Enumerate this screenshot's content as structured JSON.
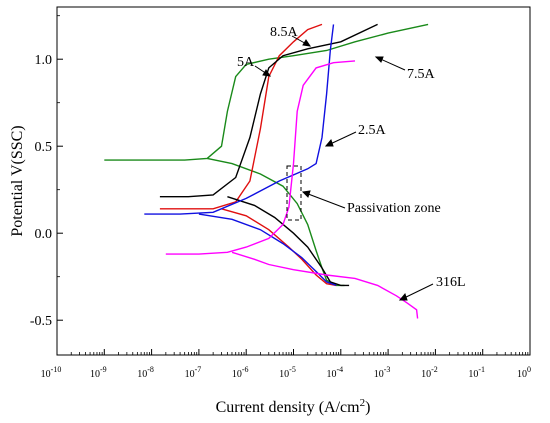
{
  "chart_data": {
    "type": "line",
    "xlabel": "Current density (A/cm",
    "xlabel_sup": "2",
    "xlabel_tail": ")",
    "ylabel": "Potential V(SSC)",
    "x_scale": "log",
    "xlim": [
      1e-10,
      1
    ],
    "ylim": [
      -0.7,
      1.3
    ],
    "x_ticks": [
      {
        "base": "10",
        "exp": "-10"
      },
      {
        "base": "10",
        "exp": "-9"
      },
      {
        "base": "10",
        "exp": "-8"
      },
      {
        "base": "10",
        "exp": "-7"
      },
      {
        "base": "10",
        "exp": "-6"
      },
      {
        "base": "10",
        "exp": "-5"
      },
      {
        "base": "10",
        "exp": "-4"
      },
      {
        "base": "10",
        "exp": "-3"
      },
      {
        "base": "10",
        "exp": "-2"
      },
      {
        "base": "10",
        "exp": "-1"
      },
      {
        "base": "10",
        "exp": "0"
      }
    ],
    "y_ticks": [
      {
        "value": -0.5,
        "label": "-0.5"
      },
      {
        "value": 0.0,
        "label": "0.0"
      },
      {
        "value": 0.5,
        "label": "0.5"
      },
      {
        "value": 1.0,
        "label": "1.0"
      }
    ],
    "grid": false,
    "legend": "none",
    "series": [
      {
        "name": "5A",
        "color": "#1a8a1a",
        "points": [
          [
            1e-09,
            0.42
          ],
          [
            1e-08,
            0.42
          ],
          [
            5e-08,
            0.42
          ],
          [
            1.5e-07,
            0.43
          ],
          [
            3e-07,
            0.5
          ],
          [
            4e-07,
            0.7
          ],
          [
            6e-07,
            0.9
          ],
          [
            1e-06,
            0.97
          ],
          [
            3e-06,
            1.0
          ],
          [
            1e-05,
            1.02
          ],
          [
            5e-05,
            1.05
          ],
          [
            0.0002,
            1.1
          ],
          [
            0.001,
            1.15
          ],
          [
            0.007,
            1.2
          ]
        ],
        "cathodic": [
          [
            1.5e-07,
            0.43
          ],
          [
            5e-07,
            0.4
          ],
          [
            2e-06,
            0.34
          ],
          [
            6e-06,
            0.27
          ],
          [
            1.2e-05,
            0.17
          ],
          [
            2e-05,
            0.05
          ],
          [
            3e-05,
            -0.1
          ],
          [
            4e-05,
            -0.2
          ],
          [
            5e-05,
            -0.27
          ],
          [
            8e-05,
            -0.3
          ],
          [
            0.00012,
            -0.3
          ]
        ]
      },
      {
        "name": "8.5A",
        "color": "#e01010",
        "points": [
          [
            1.5e-08,
            0.14
          ],
          [
            5e-08,
            0.14
          ],
          [
            2e-07,
            0.14
          ],
          [
            6e-07,
            0.18
          ],
          [
            1.2e-06,
            0.3
          ],
          [
            2e-06,
            0.6
          ],
          [
            3e-06,
            0.9
          ],
          [
            5e-06,
            1.02
          ],
          [
            1e-05,
            1.1
          ],
          [
            2e-05,
            1.17
          ],
          [
            4e-05,
            1.2
          ]
        ],
        "cathodic": [
          [
            3e-07,
            0.14
          ],
          [
            1e-06,
            0.1
          ],
          [
            3e-06,
            0.02
          ],
          [
            8e-06,
            -0.08
          ],
          [
            1.5e-05,
            -0.15
          ],
          [
            3e-05,
            -0.24
          ],
          [
            5e-05,
            -0.29
          ],
          [
            8e-05,
            -0.3
          ]
        ]
      },
      {
        "name": "7.5A",
        "color": "#000000",
        "points": [
          [
            1.5e-08,
            0.21
          ],
          [
            6e-08,
            0.21
          ],
          [
            2e-07,
            0.22
          ],
          [
            6e-07,
            0.32
          ],
          [
            1.2e-06,
            0.55
          ],
          [
            2e-06,
            0.8
          ],
          [
            3e-06,
            0.95
          ],
          [
            6e-06,
            1.02
          ],
          [
            2e-05,
            1.06
          ],
          [
            0.0001,
            1.1
          ],
          [
            0.0006,
            1.2
          ]
        ],
        "cathodic": [
          [
            4e-07,
            0.21
          ],
          [
            1.5e-06,
            0.16
          ],
          [
            4e-06,
            0.09
          ],
          [
            1e-05,
            0.0
          ],
          [
            2e-05,
            -0.08
          ],
          [
            4e-05,
            -0.2
          ],
          [
            6e-05,
            -0.28
          ],
          [
            0.0001,
            -0.3
          ],
          [
            0.00015,
            -0.3
          ]
        ]
      },
      {
        "name": "2.5A",
        "color": "#1010e0",
        "points": [
          [
            7e-09,
            0.11
          ],
          [
            4e-08,
            0.11
          ],
          [
            2e-07,
            0.12
          ],
          [
            1e-06,
            0.2
          ],
          [
            5e-06,
            0.3
          ],
          [
            2e-05,
            0.37
          ],
          [
            3e-05,
            0.4
          ],
          [
            4e-05,
            0.55
          ],
          [
            5e-05,
            0.8
          ],
          [
            6e-05,
            1.05
          ],
          [
            7e-05,
            1.2
          ]
        ],
        "cathodic": [
          [
            1e-07,
            0.11
          ],
          [
            5e-07,
            0.08
          ],
          [
            2e-06,
            0.02
          ],
          [
            6e-06,
            -0.06
          ],
          [
            1.5e-05,
            -0.14
          ],
          [
            3e-05,
            -0.22
          ],
          [
            5e-05,
            -0.28
          ],
          [
            8e-05,
            -0.3
          ]
        ]
      },
      {
        "name": "316L",
        "color": "#ff00ff",
        "points": [
          [
            2e-08,
            -0.12
          ],
          [
            1e-07,
            -0.12
          ],
          [
            4e-07,
            -0.11
          ],
          [
            1e-06,
            -0.08
          ],
          [
            3e-06,
            -0.03
          ],
          [
            6e-06,
            0.05
          ],
          [
            8e-06,
            0.15
          ],
          [
            1e-05,
            0.4
          ],
          [
            1.2e-05,
            0.7
          ],
          [
            1.6e-05,
            0.85
          ],
          [
            3e-05,
            0.95
          ],
          [
            7e-05,
            0.98
          ],
          [
            0.0002,
            0.99
          ]
        ],
        "cathodic": [
          [
            5e-07,
            -0.11
          ],
          [
            1.5e-06,
            -0.15
          ],
          [
            3e-06,
            -0.18
          ],
          [
            1e-05,
            -0.21
          ],
          [
            5e-05,
            -0.24
          ],
          [
            0.0002,
            -0.26
          ],
          [
            0.0006,
            -0.3
          ],
          [
            0.0015,
            -0.36
          ],
          [
            0.0025,
            -0.4
          ],
          [
            0.004,
            -0.44
          ],
          [
            0.0042,
            -0.49
          ]
        ]
      }
    ],
    "annotations": [
      {
        "text": "8.5A"
      },
      {
        "text": "5A"
      },
      {
        "text": "7.5A"
      },
      {
        "text": "2.5A"
      },
      {
        "text": "Passivation zone"
      },
      {
        "text": "316L"
      }
    ]
  }
}
